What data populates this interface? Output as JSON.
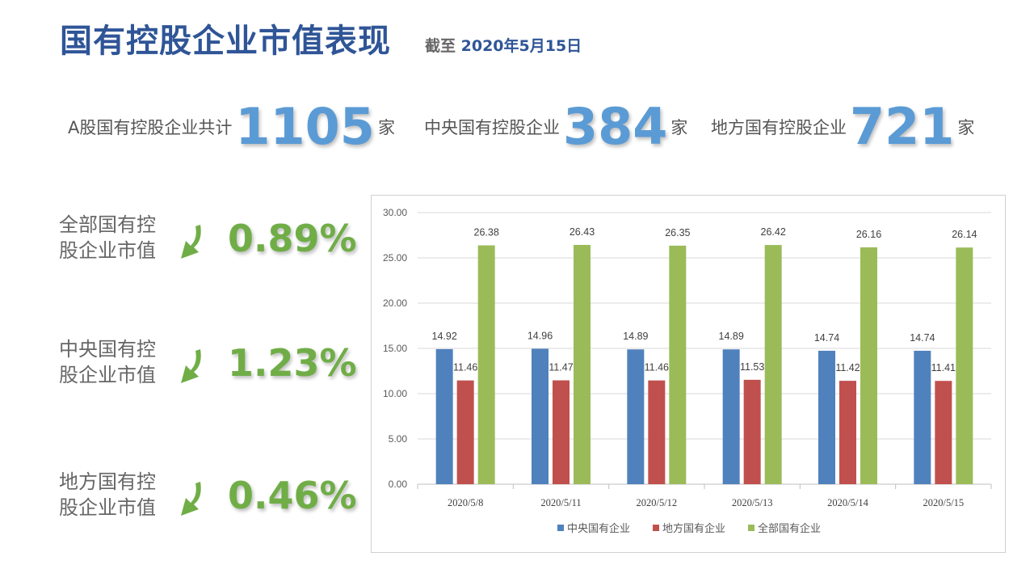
{
  "header": {
    "title": "国有控股企业市值表现",
    "asof_prefix": "截至",
    "asof_date": "2020年5月15日"
  },
  "stats": [
    {
      "label": "A股国有控股企业共计",
      "value": "1105",
      "unit": "家"
    },
    {
      "label": "中央国有控股企业",
      "value": "384",
      "unit": "家"
    },
    {
      "label": "地方国有控股企业",
      "value": "721",
      "unit": "家"
    }
  ],
  "metrics": [
    {
      "label_line1": "全部国有控",
      "label_line2": "股企业市值",
      "direction": "down",
      "value": "0.89%",
      "arrow_icon": "arrow-down-icon",
      "color": "#70ad47"
    },
    {
      "label_line1": "中央国有控",
      "label_line2": "股企业市值",
      "direction": "down",
      "value": "1.23%",
      "arrow_icon": "arrow-down-icon",
      "color": "#70ad47"
    },
    {
      "label_line1": "地方国有控",
      "label_line2": "股企业市值",
      "direction": "down",
      "value": "0.46%",
      "arrow_icon": "arrow-down-icon",
      "color": "#70ad47"
    }
  ],
  "chart_data": {
    "type": "bar",
    "categories": [
      "2020/5/8",
      "2020/5/11",
      "2020/5/12",
      "2020/5/13",
      "2020/5/14",
      "2020/5/15"
    ],
    "series": [
      {
        "name": "中央国有企业",
        "color": "#4f81bd",
        "values": [
          14.92,
          14.96,
          14.89,
          14.89,
          14.74,
          14.74
        ]
      },
      {
        "name": "地方国有企业",
        "color": "#c0504d",
        "values": [
          11.46,
          11.47,
          11.46,
          11.53,
          11.42,
          11.41
        ]
      },
      {
        "name": "全部国有企业",
        "color": "#9bbb59",
        "values": [
          26.38,
          26.43,
          26.35,
          26.42,
          26.16,
          26.14
        ]
      }
    ],
    "ylim": [
      0,
      30
    ],
    "yticks": [
      "0.00",
      "5.00",
      "10.00",
      "15.00",
      "20.00",
      "25.00",
      "30.00"
    ],
    "grid": true,
    "legend_position": "bottom"
  }
}
